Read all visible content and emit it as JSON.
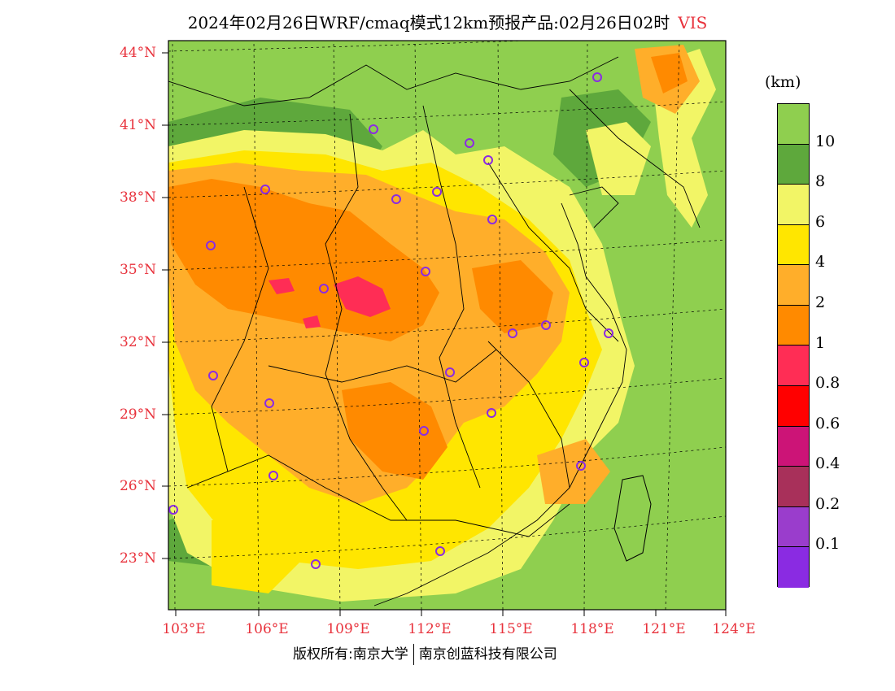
{
  "title": {
    "main": "2024年02月26日WRF/cmaq模式12km预报产品:02月26日02时",
    "variable": "VIS"
  },
  "latitude_labels": [
    "44°N",
    "41°N",
    "38°N",
    "35°N",
    "32°N",
    "29°N",
    "26°N",
    "23°N"
  ],
  "longitude_labels": [
    "103°E",
    "106°E",
    "109°E",
    "112°E",
    "115°E",
    "118°E",
    "121°E",
    "124°E"
  ],
  "legend": {
    "unit": "(km)",
    "labels": [
      "10",
      "8",
      "6",
      "4",
      "2",
      "1",
      "0.8",
      "0.6",
      "0.4",
      "0.2",
      "0.1"
    ],
    "colors": [
      "#8fcf4f",
      "#5ea83c",
      "#f2f566",
      "#ffe600",
      "#ffae2a",
      "#ff8a00",
      "#ff2d55",
      "#ff0000",
      "#cc1477",
      "#a8305a",
      "#9a3dcc",
      "#8a2be2"
    ]
  },
  "colors": {
    "accent": "#e8323c",
    "station_marker": "#8b2be2",
    "border": "#000000"
  },
  "copyright": {
    "left": "版权所有:南京大学",
    "right": "南京创蓝科技有限公司"
  }
}
